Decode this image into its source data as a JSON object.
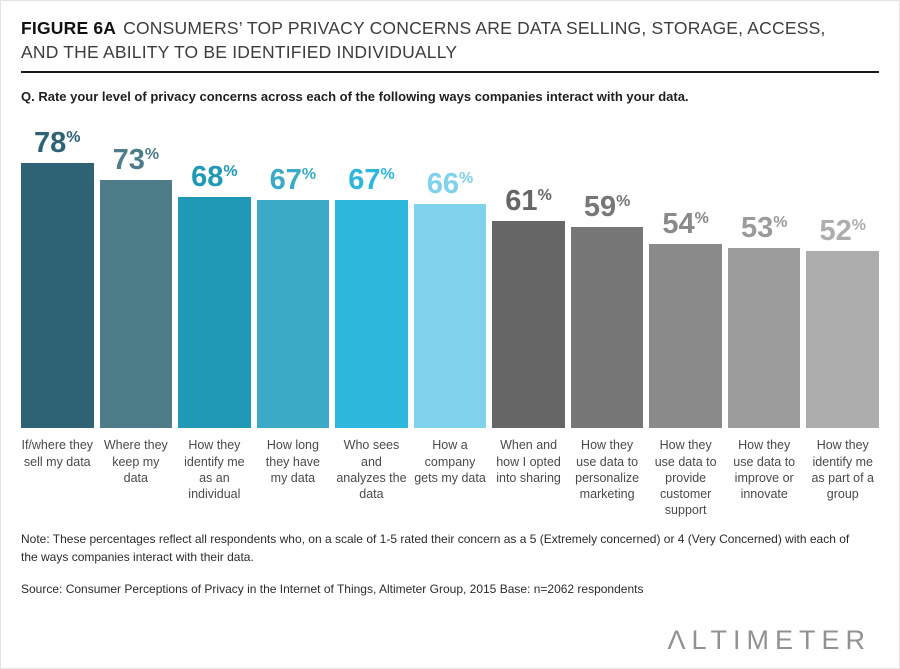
{
  "header": {
    "figure_label": "FIGURE 6A",
    "title_line1": "CONSUMERS’ TOP PRIVACY CONCERNS ARE DATA SELLING, STORAGE, ACCESS,",
    "title_line2": "AND THE ABILITY TO BE IDENTIFIED INDIVIDUALLY"
  },
  "question": "Q. Rate your level of privacy concerns across each of the following ways companies interact with your data.",
  "chart_data": {
    "type": "bar",
    "title": "Consumers’ top privacy concerns",
    "categories": [
      "If/where they sell my data",
      "Where they keep my data",
      "How they identify me as an individual",
      "How long they have my data",
      "Who sees and analyzes the data",
      "How a company gets my data",
      "When and how I opted into sharing",
      "How they use data to personalize marketing",
      "How they use data to provide customer support",
      "How they use data to improve or innovate",
      "How they identify me as part of a group"
    ],
    "values": [
      78,
      73,
      68,
      67,
      67,
      66,
      61,
      59,
      54,
      53,
      52
    ],
    "value_suffix": "%",
    "bar_colors": [
      "#2d6375",
      "#4e7d8a",
      "#1f99b5",
      "#3aaac6",
      "#2db7dc",
      "#7fd2ec",
      "#666666",
      "#777777",
      "#8a8a8a",
      "#9b9b9b",
      "#adadad"
    ],
    "xlabel": "",
    "ylabel": "",
    "ylim": [
      0,
      80
    ],
    "grid": false,
    "legend": "none",
    "data_labels": "above bars, colored to match bars"
  },
  "footnote": "Note: These percentages reflect all respondents who, on a scale of 1-5 rated their concern as a 5 (Extremely concerned) or 4 (Very Concerned) with each of the ways companies interact with their data.",
  "source": "Source: Consumer Perceptions of Privacy in the Internet of Things, Altimeter Group, 2015 Base: n=2062 respondents",
  "logo_text": "ΛLTIMETER"
}
